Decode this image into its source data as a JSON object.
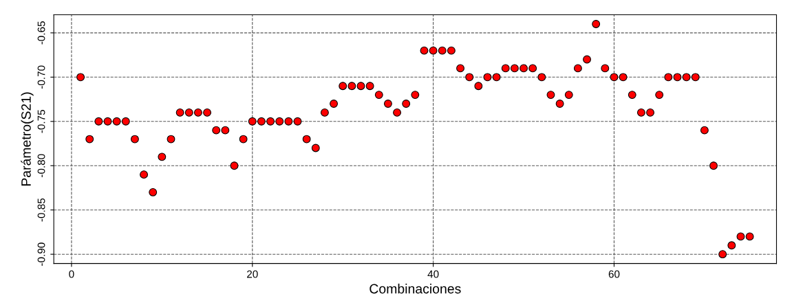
{
  "chart_data": {
    "type": "scatter",
    "xlabel": "Combinaciones",
    "ylabel": "Parámetro(S21)",
    "x": [
      1,
      2,
      3,
      4,
      5,
      6,
      7,
      8,
      9,
      10,
      11,
      12,
      13,
      14,
      15,
      16,
      17,
      18,
      19,
      20,
      21,
      22,
      23,
      24,
      25,
      26,
      27,
      28,
      29,
      30,
      31,
      32,
      33,
      34,
      35,
      36,
      37,
      38,
      39,
      40,
      41,
      42,
      43,
      44,
      45,
      46,
      47,
      48,
      49,
      50,
      51,
      52,
      53,
      54,
      55,
      56,
      57,
      58,
      59,
      60,
      61,
      62,
      63,
      64,
      65,
      66,
      67,
      68,
      69,
      70,
      71,
      72,
      73,
      74,
      75
    ],
    "values": [
      -0.7,
      -0.77,
      -0.75,
      -0.75,
      -0.75,
      -0.75,
      -0.77,
      -0.81,
      -0.83,
      -0.79,
      -0.77,
      -0.74,
      -0.74,
      -0.74,
      -0.74,
      -0.76,
      -0.76,
      -0.8,
      -0.77,
      -0.75,
      -0.75,
      -0.75,
      -0.75,
      -0.75,
      -0.75,
      -0.77,
      -0.78,
      -0.74,
      -0.73,
      -0.71,
      -0.71,
      -0.71,
      -0.71,
      -0.72,
      -0.73,
      -0.74,
      -0.73,
      -0.72,
      -0.67,
      -0.67,
      -0.67,
      -0.67,
      -0.69,
      -0.7,
      -0.71,
      -0.7,
      -0.7,
      -0.69,
      -0.69,
      -0.69,
      -0.69,
      -0.7,
      -0.72,
      -0.73,
      -0.72,
      -0.69,
      -0.68,
      -0.64,
      -0.69,
      -0.7,
      -0.7,
      -0.72,
      -0.74,
      -0.74,
      -0.72,
      -0.7,
      -0.7,
      -0.7,
      -0.7,
      -0.76,
      -0.8,
      -0.9,
      -0.89,
      -0.88,
      -0.88
    ],
    "color": "#ff0000",
    "marker": "circle",
    "grid": true,
    "xlim": [
      -1.96,
      77.96
    ],
    "ylim": [
      -0.9104,
      -0.6296
    ],
    "xticks": [
      0,
      20,
      40,
      60
    ],
    "yticks": [
      {
        "value": -0.9,
        "label": "-0.90"
      },
      {
        "value": -0.85,
        "label": "-0.85"
      },
      {
        "value": -0.8,
        "label": "-0.80"
      },
      {
        "value": -0.75,
        "label": "-0.75"
      },
      {
        "value": -0.7,
        "label": "-0.70"
      },
      {
        "value": -0.65,
        "label": "-0.65"
      }
    ]
  }
}
